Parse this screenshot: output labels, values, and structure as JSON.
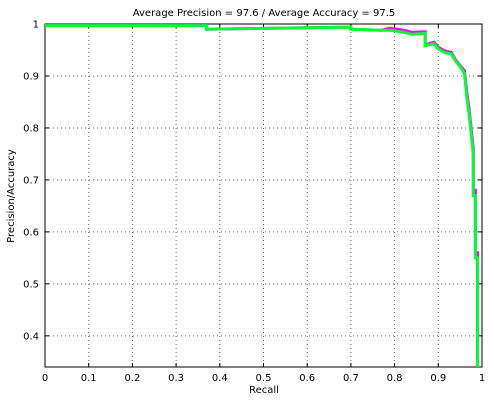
{
  "chart_data": {
    "type": "line",
    "title": "Average Precision = 97.6 / Average Accuracy = 97.5",
    "xlabel": "Recall",
    "ylabel": "Precision/Accuracy",
    "xlim": [
      0,
      1
    ],
    "ylim": [
      0.34,
      1.0
    ],
    "x_ticks": [
      0,
      0.1,
      0.2,
      0.3,
      0.4,
      0.5,
      0.6,
      0.7,
      0.8,
      0.9,
      1
    ],
    "x_tick_labels": [
      "0",
      "0.1",
      "0.2",
      "0.3",
      "0.4",
      "0.5",
      "0.6",
      "0.7",
      "0.8",
      "0.9",
      "1"
    ],
    "y_ticks": [
      0.4,
      0.5,
      0.6,
      0.7,
      0.8,
      0.9,
      1
    ],
    "y_tick_labels": [
      "0.4",
      "0.5",
      "0.6",
      "0.7",
      "0.8",
      "0.9",
      "1"
    ],
    "grid": true,
    "colors": {
      "series_1": "#ff00ff",
      "series_2": "#00ff33"
    },
    "series": [
      {
        "x": [
          0,
          0.37,
          0.37,
          0.7,
          0.7,
          0.77,
          0.79,
          0.82,
          0.84,
          0.87,
          0.87,
          0.89,
          0.9,
          0.915,
          0.93,
          0.94,
          0.95,
          0.96,
          0.965,
          0.97,
          0.975,
          0.98,
          0.98,
          0.985,
          0.985,
          0.99,
          0.99
        ],
        "y": [
          0.997,
          0.997,
          0.99,
          0.994,
          0.99,
          0.988,
          0.992,
          0.988,
          0.984,
          0.985,
          0.96,
          0.965,
          0.955,
          0.948,
          0.945,
          0.93,
          0.92,
          0.91,
          0.87,
          0.84,
          0.8,
          0.76,
          0.68,
          0.68,
          0.56,
          0.56,
          0.34
        ]
      },
      {
        "x": [
          0,
          0.37,
          0.37,
          0.7,
          0.7,
          0.77,
          0.79,
          0.82,
          0.84,
          0.87,
          0.87,
          0.89,
          0.9,
          0.915,
          0.93,
          0.94,
          0.95,
          0.96,
          0.965,
          0.97,
          0.975,
          0.98,
          0.98,
          0.985,
          0.985,
          0.99,
          0.99
        ],
        "y": [
          0.997,
          0.997,
          0.99,
          0.994,
          0.99,
          0.988,
          0.988,
          0.984,
          0.98,
          0.982,
          0.958,
          0.962,
          0.952,
          0.945,
          0.942,
          0.928,
          0.918,
          0.905,
          0.86,
          0.83,
          0.79,
          0.75,
          0.67,
          0.67,
          0.55,
          0.55,
          0.34
        ]
      }
    ]
  }
}
